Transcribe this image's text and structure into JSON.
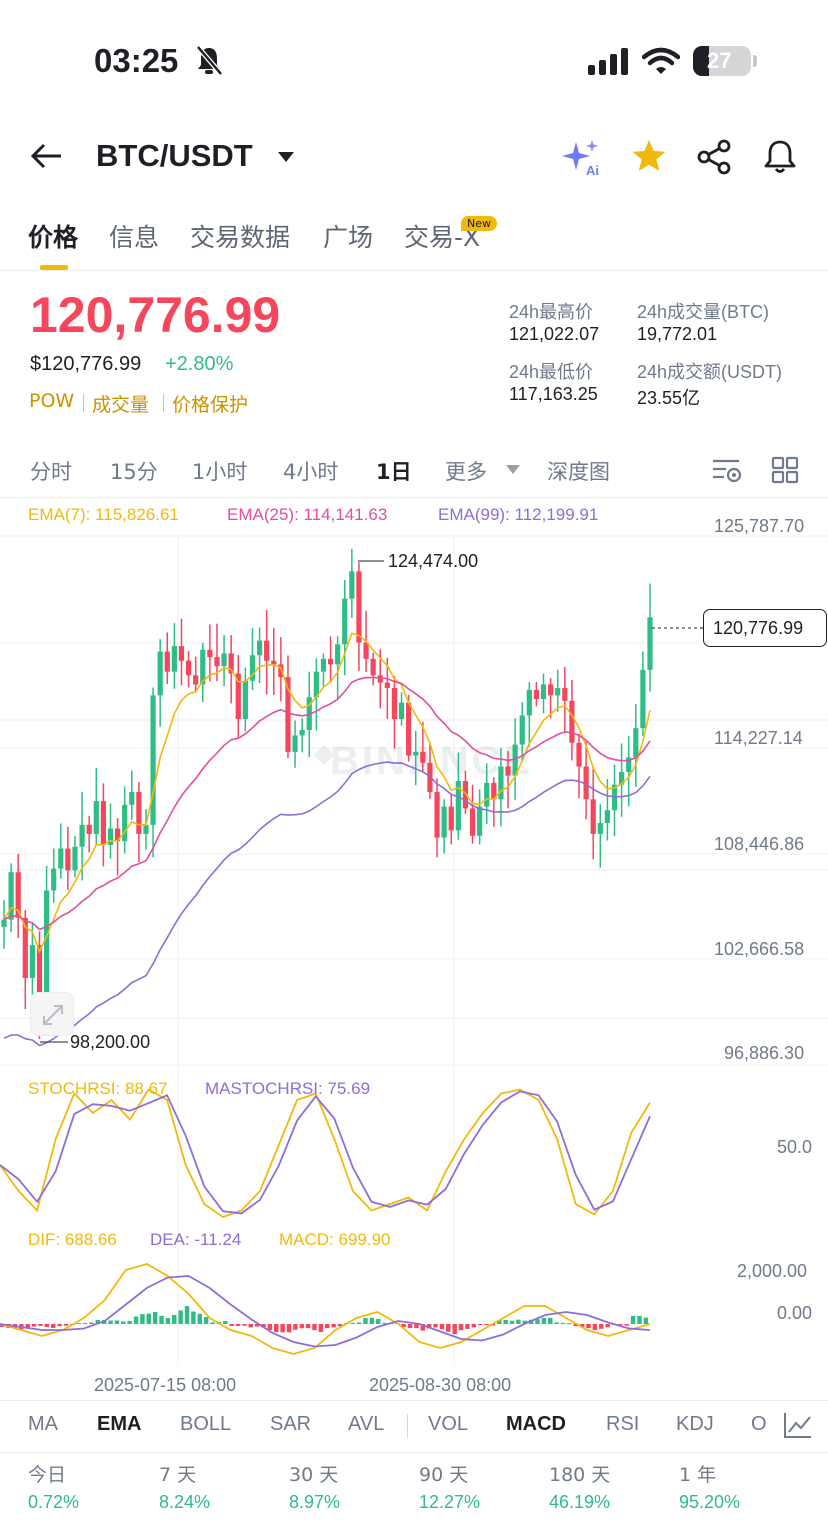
{
  "status_bar": {
    "time": "03:25",
    "battery": "27"
  },
  "header": {
    "pair": "BTC/USDT"
  },
  "tabs": [
    {
      "label": "价格",
      "active": true
    },
    {
      "label": "信息"
    },
    {
      "label": "交易数据"
    },
    {
      "label": "广场"
    },
    {
      "label": "交易-X",
      "badge": "New"
    }
  ],
  "price": {
    "last": "120,776.99",
    "usd": "$120,776.99",
    "change": "+2.80%",
    "tags": [
      "POW",
      "成交量",
      "价格保护"
    ],
    "stats": {
      "high_label": "24h最高价",
      "high": "121,022.07",
      "low_label": "24h最低价",
      "low": "117,163.25",
      "vol_btc_label": "24h成交量(BTC)",
      "vol_btc": "19,772.01",
      "vol_usdt_label": "24h成交额(USDT)",
      "vol_usdt": "23.55亿"
    }
  },
  "intervals": [
    "分时",
    "15分",
    "1小时",
    "4小时",
    "1日",
    "更多",
    "深度图"
  ],
  "active_interval": "1日",
  "chart_data": [
    {
      "type": "candlestick",
      "ema": {
        "ema7_label": "EMA(7): 115,826.61",
        "ema25_label": "EMA(25): 114,141.63",
        "ema99_label": "EMA(99): 112,199.91"
      },
      "y_ticks": [
        "125,787.70",
        "114,227.14",
        "108,446.86",
        "102,666.58",
        "96,886.30"
      ],
      "y_range": [
        96886.3,
        125787.7
      ],
      "current_price_label": "120,776.99",
      "high_marker": "124,474.00",
      "low_marker": "98,200.00",
      "x_ticks": [
        "2025-07-15 08:00",
        "2025-08-30 08:00"
      ],
      "colors": {
        "up": "#2ebd85",
        "down": "#f6465d",
        "ema7": "#f0b90b",
        "ema25": "#e04fa0",
        "ema99": "#8e6dd6"
      }
    },
    {
      "type": "line",
      "stochrsi_label": "STOCHRSI: 88.67",
      "mastochrsi_label": "MASTOCHRSI: 75.69",
      "y_ticks": [
        "50.0"
      ]
    },
    {
      "type": "bar",
      "dif_label": "DIF: 688.66",
      "dea_label": "DEA: -11.24",
      "macd_label": "MACD: 699.90",
      "y_ticks": [
        "2,000.00",
        "0.00"
      ]
    }
  ],
  "indicator_tabs": [
    "MA",
    "EMA",
    "BOLL",
    "SAR",
    "AVL",
    "VOL",
    "MACD",
    "RSI",
    "KDJ",
    "O"
  ],
  "performance": [
    {
      "label": "今日",
      "value": "0.72%"
    },
    {
      "label": "7 天",
      "value": "8.24%"
    },
    {
      "label": "30 天",
      "value": "8.97%"
    },
    {
      "label": "90 天",
      "value": "12.27%"
    },
    {
      "label": "180 天",
      "value": "46.19%"
    },
    {
      "label": "1 年",
      "value": "95.20%"
    }
  ]
}
